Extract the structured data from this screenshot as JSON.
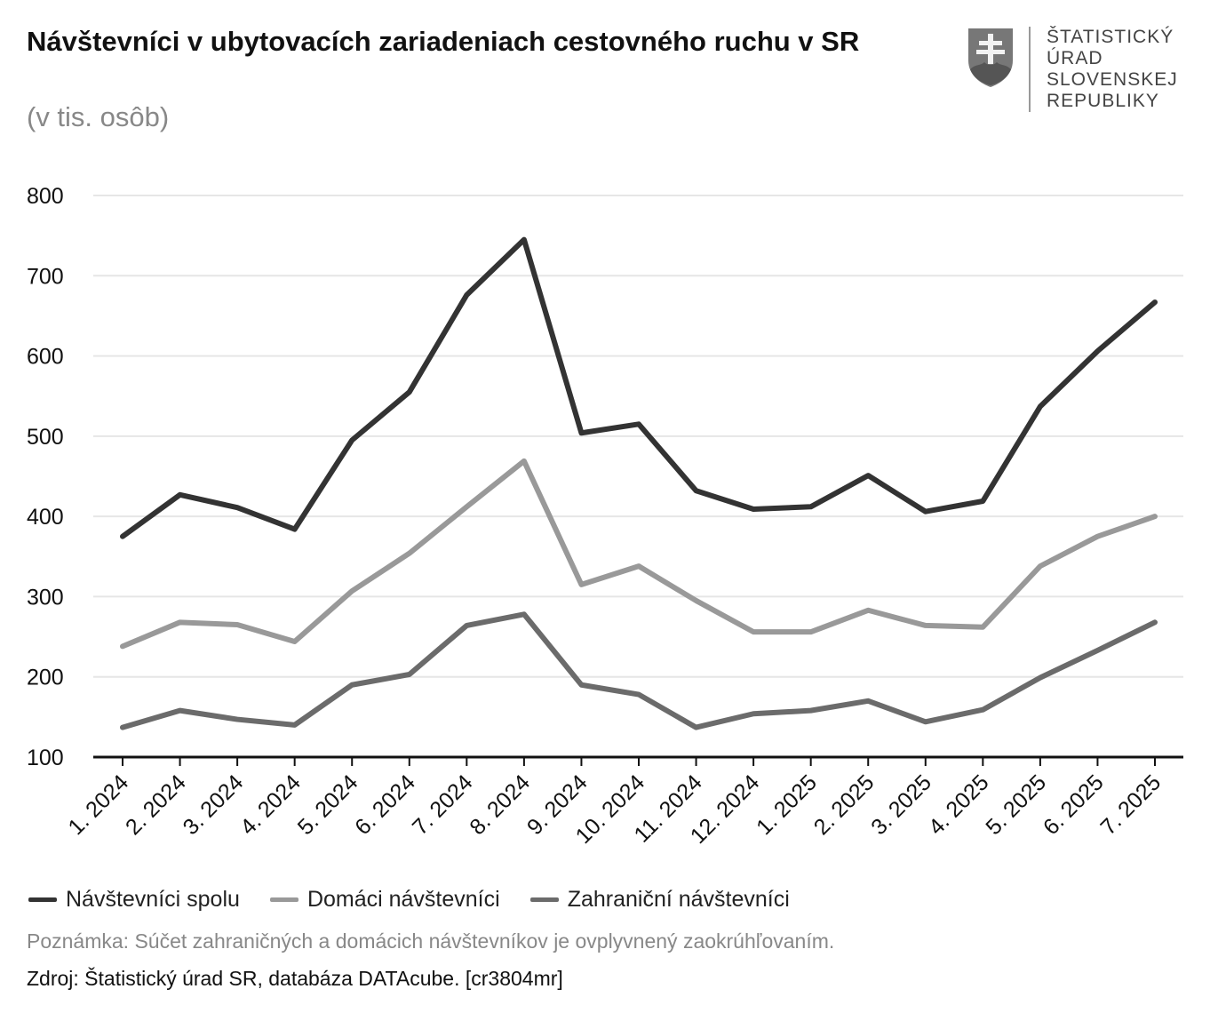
{
  "title": "Návštevníci v ubytovacích zariadeniach cestovného ruchu v SR",
  "subtitle": "(v tis. osôb)",
  "logo": {
    "lines": [
      "ŠTATISTICKÝ",
      "ÚRAD",
      "SLOVENSKEJ",
      "REPUBLIKY"
    ]
  },
  "note": "Poznámka: Súčet zahraničných a domácich návštevníkov je ovplyvnený zaokrúhľovaním.",
  "source": "Zdroj: Štatistický úrad SR, databáza DATAcube. [cr3804mr]",
  "chart_data": {
    "type": "line",
    "title": "Návštevníci v ubytovacích zariadeniach cestovného ruchu v SR",
    "subtitle": "(v tis. osôb)",
    "ylim": [
      100,
      800
    ],
    "yticks": [
      100,
      200,
      300,
      400,
      500,
      600,
      700,
      800
    ],
    "grid": true,
    "legend": "bottom-left",
    "categories": [
      "1. 2024",
      "2. 2024",
      "3. 2024",
      "4. 2024",
      "5. 2024",
      "6. 2024",
      "7. 2024",
      "8. 2024",
      "9. 2024",
      "10. 2024",
      "11. 2024",
      "12. 2024",
      "1. 2025",
      "2. 2025",
      "3. 2025",
      "4. 2025",
      "5. 2025",
      "6. 2025",
      "7. 2025"
    ],
    "series": [
      {
        "name": "Návštevníci spolu",
        "color": "#333333",
        "values": [
          375,
          427,
          411,
          384,
          495,
          555,
          676,
          745,
          504,
          515,
          432,
          409,
          412,
          451,
          406,
          419,
          537,
          606,
          667
        ]
      },
      {
        "name": "Domáci návštevníci",
        "color": "#999999",
        "values": [
          238,
          268,
          265,
          244,
          307,
          354,
          412,
          469,
          315,
          338,
          295,
          256,
          256,
          283,
          264,
          262,
          338,
          375,
          400
        ]
      },
      {
        "name": "Zahraniční návštevníci",
        "color": "#6b6b6b",
        "values": [
          137,
          158,
          147,
          140,
          190,
          203,
          264,
          278,
          190,
          178,
          137,
          154,
          158,
          170,
          144,
          159,
          199,
          233,
          268
        ]
      }
    ]
  }
}
